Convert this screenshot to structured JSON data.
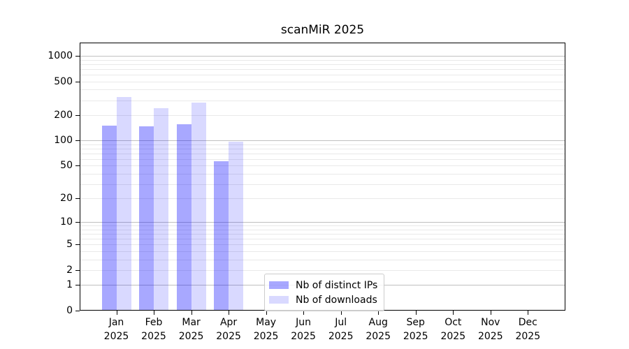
{
  "title": "scanMiR 2025",
  "chart_data": {
    "type": "bar",
    "title": "scanMiR 2025",
    "categories": [
      "Jan",
      "Feb",
      "Mar",
      "Apr",
      "May",
      "Jun",
      "Jul",
      "Aug",
      "Sep",
      "Oct",
      "Nov",
      "Dec"
    ],
    "year_label": "2025",
    "series": [
      {
        "name": "Nb of distinct IPs",
        "color": "rgba(0,0,255,0.34)",
        "values": [
          149,
          146,
          156,
          57,
          0,
          0,
          0,
          0,
          0,
          0,
          0,
          0
        ]
      },
      {
        "name": "Nb of downloads",
        "color": "rgba(0,0,255,0.15)",
        "values": [
          330,
          240,
          280,
          96,
          0,
          0,
          0,
          0,
          0,
          0,
          0,
          0
        ]
      }
    ],
    "y_axis": {
      "scale": "symlog",
      "ticks": [
        1000,
        500,
        200,
        100,
        50,
        20,
        10,
        5,
        2,
        1,
        0
      ],
      "major_gridlines": [
        1000,
        100,
        10,
        1
      ],
      "minor_gridlines": [
        900,
        800,
        700,
        600,
        500,
        400,
        300,
        200,
        90,
        80,
        70,
        60,
        50,
        40,
        30,
        20,
        9,
        8,
        7,
        6,
        5,
        4,
        3,
        2
      ],
      "max": 1450
    },
    "x_axis": {
      "label_line2": "2025"
    },
    "legend": {
      "entries": [
        "Nb of distinct IPs",
        "Nb of downloads"
      ],
      "position": "bottom-center"
    },
    "grid": "on",
    "colors": {
      "major_grid": "#c0c0c0",
      "minor_grid": "#e9e9e9",
      "axis": "#000000",
      "legend_border": "#cccccc"
    }
  }
}
